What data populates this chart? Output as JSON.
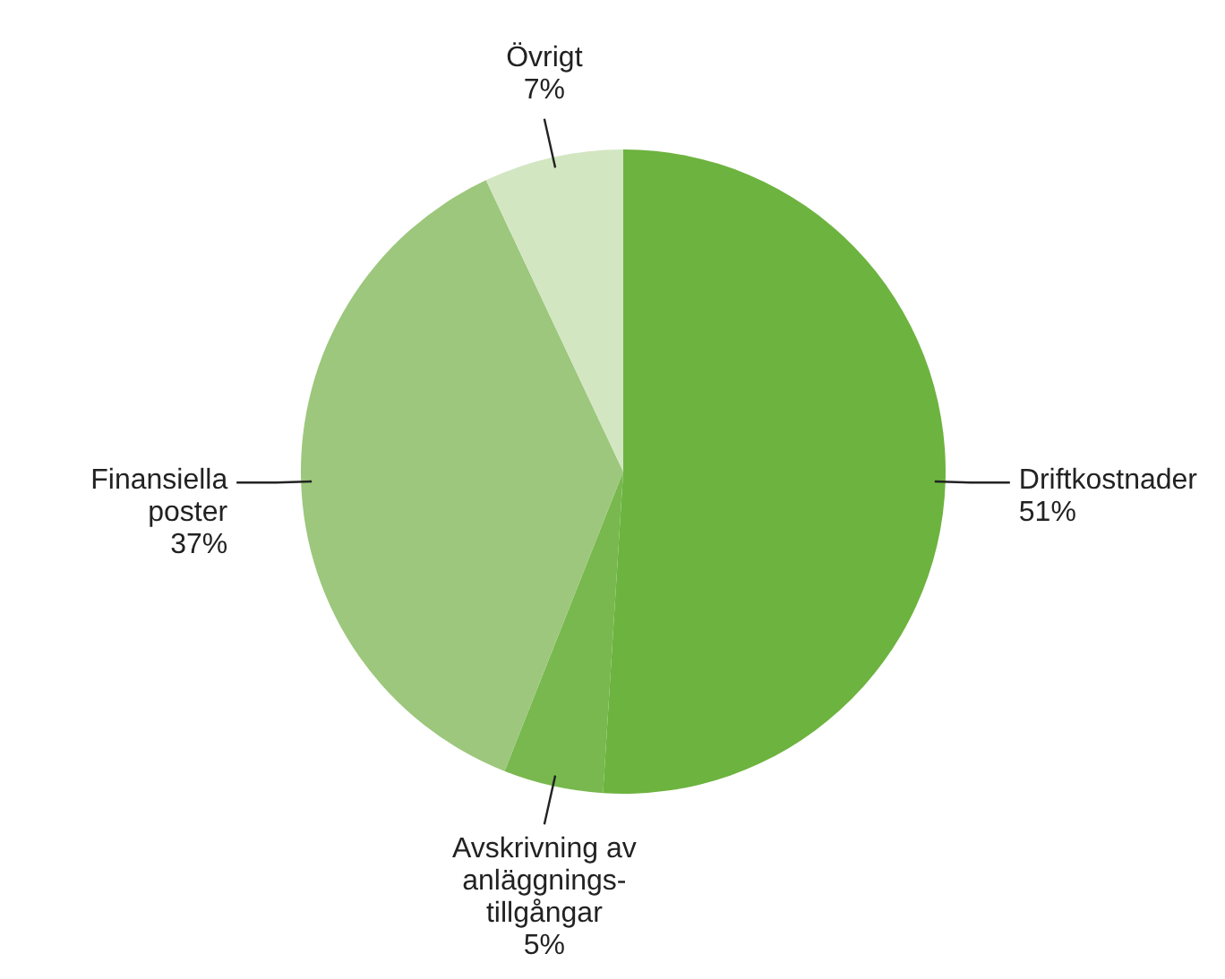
{
  "chart_data": {
    "type": "pie",
    "categories": [
      "Driftkostnader",
      "Avskrivning av\nanläggnings-\ntillgångar",
      "Finansiella\nposter",
      "Övrigt"
    ],
    "values": [
      51,
      5,
      37,
      7
    ],
    "colors": [
      "#6db33f",
      "#78b84e",
      "#9cc77c",
      "#d3e6c2"
    ],
    "value_labels": [
      "51%",
      "5%",
      "37%",
      "7%"
    ],
    "legend": false
  }
}
